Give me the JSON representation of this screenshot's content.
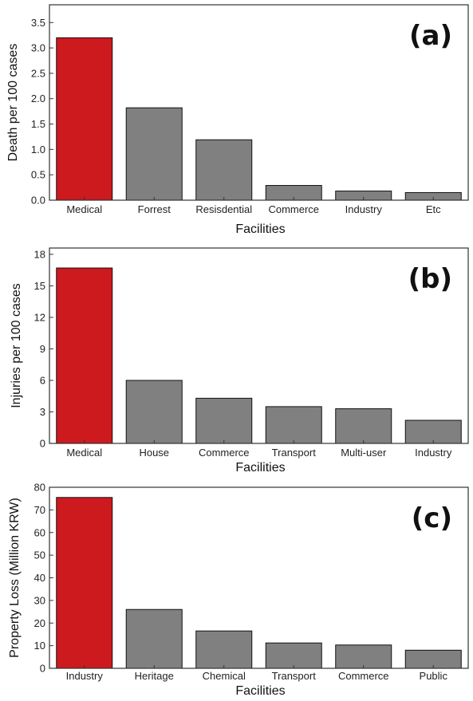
{
  "colors": {
    "highlight": "#cc1a1f",
    "bar": "#808080",
    "bar_stroke": "#111111",
    "axis": "#333333"
  },
  "chart_data": [
    {
      "type": "bar",
      "panel_label": "(a)",
      "categories": [
        "Medical",
        "Forrest",
        "Resisdential",
        "Commerce",
        "Industry",
        "Etc"
      ],
      "values": [
        3.2,
        1.82,
        1.19,
        0.29,
        0.18,
        0.15
      ],
      "highlight_index": 0,
      "xlabel": "Facilities",
      "ylabel": "Death per 100 cases",
      "ylim": [
        0,
        3.85
      ],
      "yticks": [
        "0.0",
        "0.5",
        "1.0",
        "1.5",
        "2.0",
        "2.5",
        "3.0",
        "3.5"
      ]
    },
    {
      "type": "bar",
      "panel_label": "(b)",
      "categories": [
        "Medical",
        "House",
        "Commerce",
        "Transport",
        "Multi-user",
        "Industry"
      ],
      "values": [
        16.7,
        6.0,
        4.3,
        3.5,
        3.3,
        2.2
      ],
      "highlight_index": 0,
      "xlabel": "Facilities",
      "ylabel": "Injuries per 100 cases",
      "ylim": [
        0,
        18.6
      ],
      "yticks": [
        "0",
        "3",
        "6",
        "9",
        "12",
        "15",
        "18"
      ]
    },
    {
      "type": "bar",
      "panel_label": "(c)",
      "categories": [
        "Industry",
        "Heritage",
        "Chemical",
        "Transport",
        "Commerce",
        "Public"
      ],
      "values": [
        75.5,
        26.0,
        16.5,
        11.2,
        10.3,
        8.0
      ],
      "highlight_index": 0,
      "xlabel": "Facilities",
      "ylabel": "Property Loss (Million KRW)",
      "ylim": [
        0,
        80
      ],
      "yticks": [
        "0",
        "10",
        "20",
        "30",
        "40",
        "50",
        "60",
        "70",
        "80"
      ]
    }
  ]
}
